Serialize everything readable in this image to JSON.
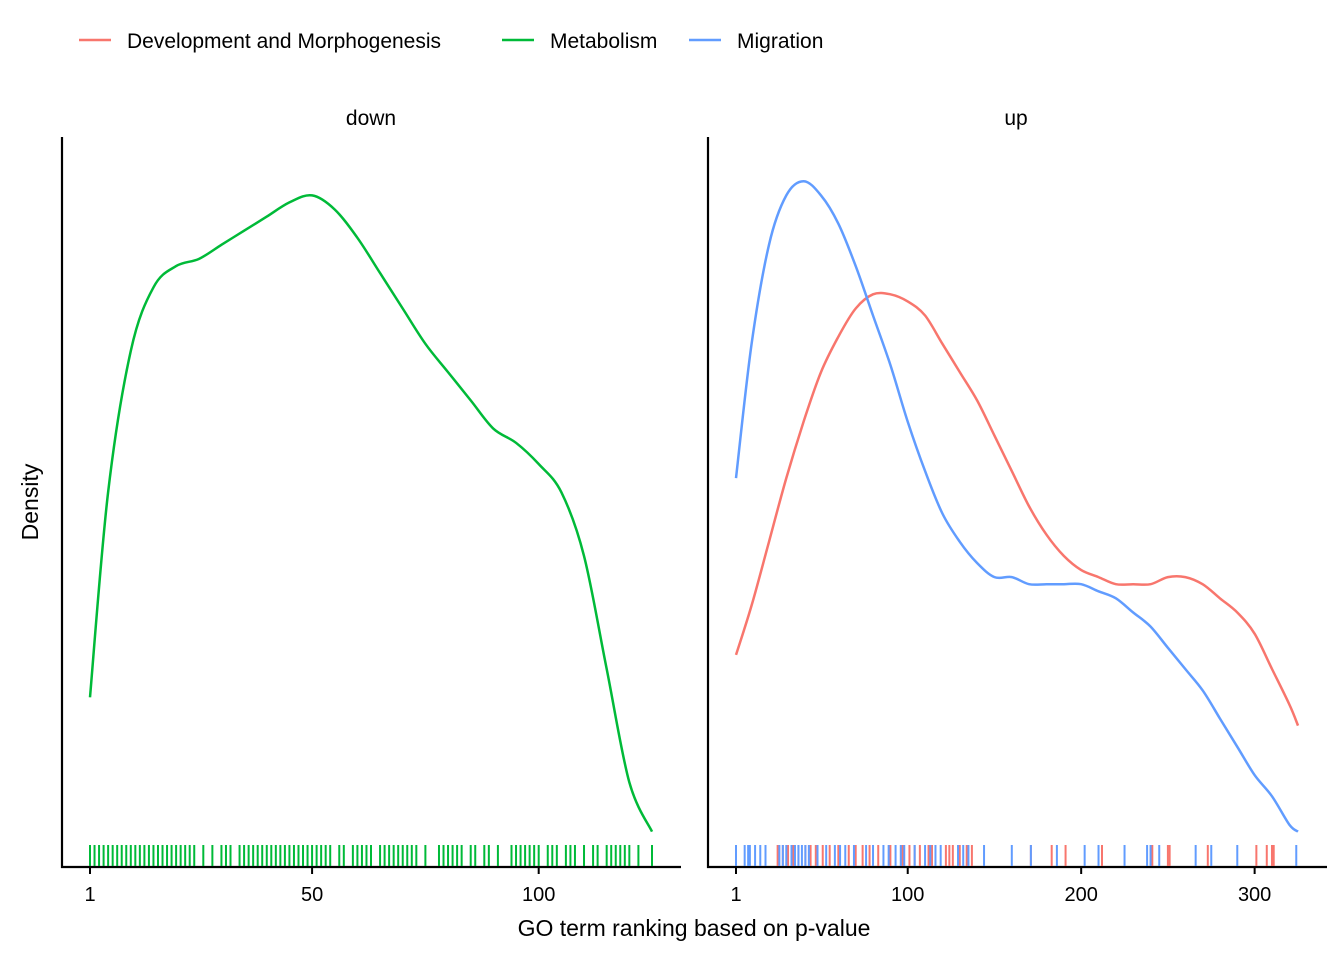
{
  "legend": {
    "items": [
      {
        "label": "Development and Morphogenesis",
        "color": "#F8766D"
      },
      {
        "label": "Metabolism",
        "color": "#00BA38"
      },
      {
        "label": "Migration",
        "color": "#619CFF"
      }
    ]
  },
  "axes": {
    "xlabel": "GO term ranking based on p-value",
    "ylabel": "Density"
  },
  "chart_data": [
    {
      "type": "line",
      "panel": "down",
      "xlabel": "GO term ranking based on p-value",
      "ylabel": "Density",
      "xlim": [
        1,
        125
      ],
      "xticks": [
        1,
        50,
        100
      ],
      "yticks_shown": false,
      "series": [
        {
          "name": "Metabolism",
          "color": "#00BA38",
          "density": {
            "x": [
              1,
              5,
              10,
              15,
              20,
              25,
              30,
              35,
              40,
              45,
              50,
              55,
              60,
              65,
              70,
              75,
              80,
              85,
              90,
              95,
              100,
              105,
              110,
              115,
              120,
              125
            ],
            "y": [
              0.24,
              0.53,
              0.73,
              0.82,
              0.85,
              0.86,
              0.88,
              0.9,
              0.92,
              0.94,
              0.95,
              0.93,
              0.89,
              0.84,
              0.79,
              0.74,
              0.7,
              0.66,
              0.62,
              0.6,
              0.57,
              0.53,
              0.44,
              0.28,
              0.12,
              0.05
            ]
          },
          "rug": [
            1,
            2,
            3,
            4,
            5,
            6,
            7,
            8,
            9,
            10,
            11,
            12,
            13,
            14,
            15,
            16,
            17,
            18,
            19,
            20,
            21,
            22,
            23,
            24,
            26,
            28,
            30,
            31,
            32,
            34,
            35,
            36,
            37,
            38,
            39,
            40,
            41,
            42,
            43,
            44,
            45,
            46,
            47,
            48,
            49,
            50,
            51,
            52,
            53,
            54,
            56,
            57,
            59,
            60,
            61,
            62,
            63,
            65,
            66,
            67,
            68,
            69,
            70,
            71,
            72,
            73,
            75,
            78,
            79,
            80,
            81,
            82,
            83,
            85,
            86,
            88,
            89,
            91,
            94,
            95,
            96,
            97,
            98,
            99,
            100,
            102,
            103,
            104,
            106,
            107,
            108,
            110,
            112,
            113,
            115,
            116,
            117,
            118,
            119,
            120,
            122,
            125
          ]
        }
      ]
    },
    {
      "type": "line",
      "panel": "up",
      "xlabel": "GO term ranking based on p-value",
      "ylabel": "Density",
      "xlim": [
        1,
        325
      ],
      "xticks": [
        1,
        100,
        200,
        300
      ],
      "yticks_shown": false,
      "series": [
        {
          "name": "Development and Morphogenesis",
          "color": "#F8766D",
          "density": {
            "x": [
              1,
              10,
              20,
              30,
              40,
              50,
              60,
              70,
              80,
              90,
              100,
              110,
              120,
              130,
              140,
              150,
              160,
              170,
              180,
              190,
              200,
              210,
              220,
              230,
              240,
              250,
              260,
              270,
              280,
              290,
              300,
              310,
              320,
              325
            ],
            "y": [
              0.3,
              0.37,
              0.46,
              0.55,
              0.63,
              0.7,
              0.75,
              0.79,
              0.81,
              0.81,
              0.8,
              0.78,
              0.74,
              0.7,
              0.66,
              0.61,
              0.56,
              0.51,
              0.47,
              0.44,
              0.42,
              0.41,
              0.4,
              0.4,
              0.4,
              0.41,
              0.41,
              0.4,
              0.38,
              0.36,
              0.33,
              0.28,
              0.23,
              0.2
            ]
          },
          "rug": [
            25,
            28,
            31,
            34,
            37,
            41,
            44,
            47,
            51,
            55,
            60,
            66,
            70,
            74,
            78,
            83,
            90,
            97,
            101,
            104,
            107,
            112,
            114,
            122,
            124,
            126,
            130,
            134,
            137,
            171,
            183,
            191,
            212,
            241,
            250,
            251,
            273,
            301,
            307,
            310,
            311
          ]
        },
        {
          "name": "Migration",
          "color": "#619CFF",
          "density": {
            "x": [
              1,
              10,
              20,
              30,
              40,
              50,
              60,
              70,
              80,
              90,
              100,
              110,
              120,
              130,
              140,
              150,
              160,
              170,
              180,
              190,
              200,
              210,
              220,
              230,
              240,
              250,
              260,
              270,
              280,
              290,
              300,
              310,
              320,
              325
            ],
            "y": [
              0.55,
              0.74,
              0.88,
              0.95,
              0.97,
              0.95,
              0.91,
              0.85,
              0.78,
              0.71,
              0.63,
              0.56,
              0.5,
              0.46,
              0.43,
              0.41,
              0.41,
              0.4,
              0.4,
              0.4,
              0.4,
              0.39,
              0.38,
              0.36,
              0.34,
              0.31,
              0.28,
              0.25,
              0.21,
              0.17,
              0.13,
              0.1,
              0.06,
              0.05
            ]
          },
          "rug": [
            1,
            6,
            8,
            9,
            12,
            15,
            18,
            26,
            28,
            30,
            33,
            35,
            37,
            39,
            41,
            43,
            48,
            53,
            58,
            61,
            64,
            69,
            76,
            80,
            86,
            89,
            93,
            96,
            98,
            104,
            110,
            113,
            116,
            119,
            129,
            132,
            135,
            144,
            160,
            171,
            186,
            202,
            210,
            225,
            238,
            240,
            245,
            266,
            275,
            290,
            324
          ]
        }
      ]
    }
  ]
}
